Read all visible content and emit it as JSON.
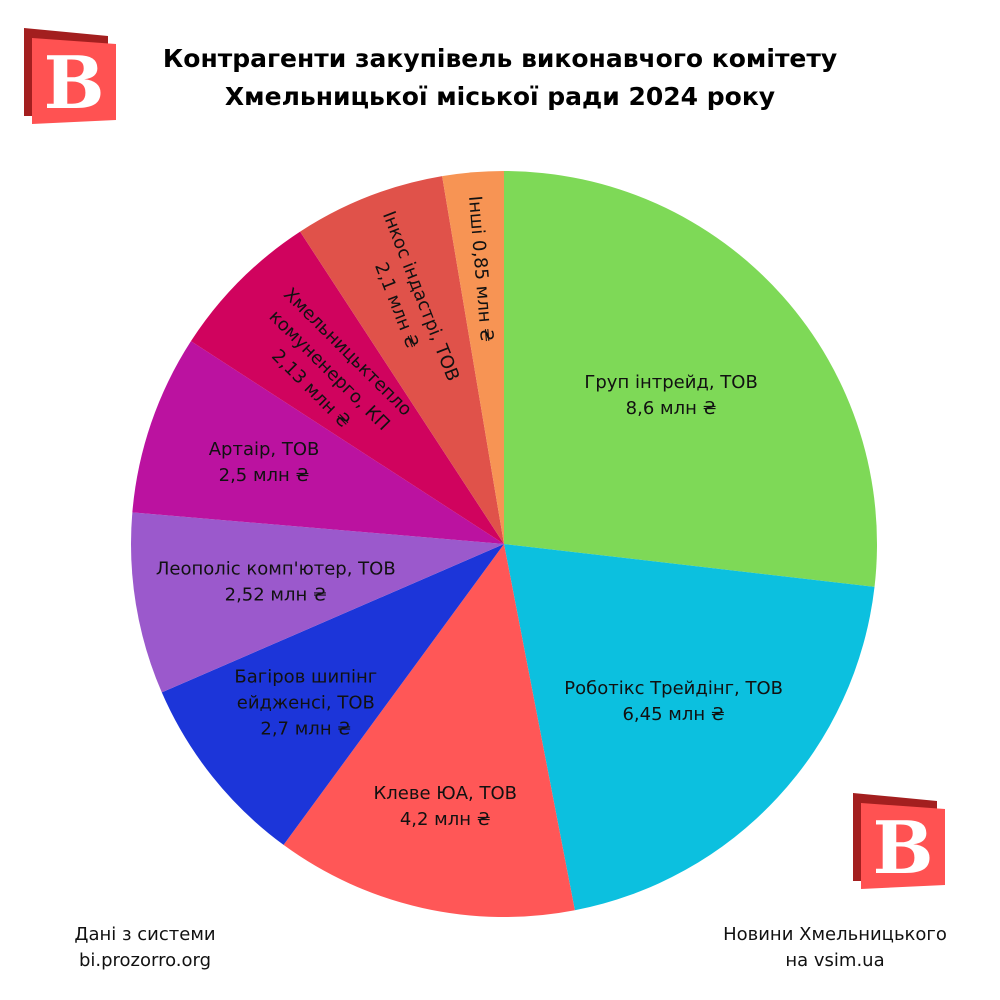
{
  "chart_data": {
    "type": "pie",
    "title": "Контрагенти закупівель виконавчого комітету Хмельницької міської ради 2024 року",
    "title_lines": [
      "Контрагенти закупівель виконавчого комітету",
      "Хмельницької міської ради 2024 року"
    ],
    "start": "top",
    "direction": "clockwise",
    "unit": "млн ₴",
    "slices": [
      {
        "name": "Груп інтрейд, ТОВ",
        "value": 8.6,
        "color": "#7ED957",
        "label_lines": [
          "Груп інтрейд, ТОВ",
          "8,6 млн ₴"
        ],
        "rotated": false
      },
      {
        "name": "Роботікс Трейдінг, ТОВ",
        "value": 6.45,
        "color": "#0CC0DF",
        "label_lines": [
          "Роботікс Трейдінг, ТОВ",
          "6,45 млн ₴"
        ],
        "rotated": false
      },
      {
        "name": "Клеве ЮА, ТОВ",
        "value": 4.2,
        "color": "#FF5757",
        "label_lines": [
          "Клеве ЮА, ТОВ",
          "4,2 млн ₴"
        ],
        "rotated": false
      },
      {
        "name": "Багіров шипінг ейдженсі, ТОВ",
        "value": 2.7,
        "color": "#1C35D9",
        "label_lines": [
          "Багіров шипінг",
          "ейдженсі, ТОВ",
          "2,7 млн ₴"
        ],
        "rotated": false
      },
      {
        "name": "Леополіс комп'ютер, ТОВ",
        "value": 2.52,
        "color": "#9B59CC",
        "label_lines": [
          "Леополіс комп'ютер, ТОВ",
          "2,52 млн ₴"
        ],
        "rotated": false
      },
      {
        "name": "Артаір, ТОВ",
        "value": 2.5,
        "color": "#BB12A0",
        "label_lines": [
          "Артаір, ТОВ",
          "2,5 млн ₴"
        ],
        "rotated": false
      },
      {
        "name": "Хмельницьктепло комуненерго, КП",
        "value": 2.13,
        "color": "#D0035E",
        "label_lines": [
          "Хмельницьктепло",
          "комуненерго, КП",
          "2,13 млн ₴"
        ],
        "rotated": true
      },
      {
        "name": "Інкос індастрі, ТОВ",
        "value": 2.1,
        "color": "#E0524A",
        "label_lines": [
          "Інкос індастрі, ТОВ",
          "2,1 млн ₴"
        ],
        "rotated": true
      },
      {
        "name": "Інші",
        "value": 0.85,
        "color": "#F79454",
        "label_lines": [
          "Інші 0,85 млн ₴"
        ],
        "rotated": true
      }
    ]
  },
  "footer": {
    "source_line1": "Дані з системи",
    "source_line2": "bi.prozorro.org",
    "brand_line1": "Новини Хмельницького",
    "brand_line2": "на vsim.ua"
  },
  "logo": {
    "letter": "В",
    "color": "#FF5252",
    "shadow_color": "#A31F1F"
  }
}
